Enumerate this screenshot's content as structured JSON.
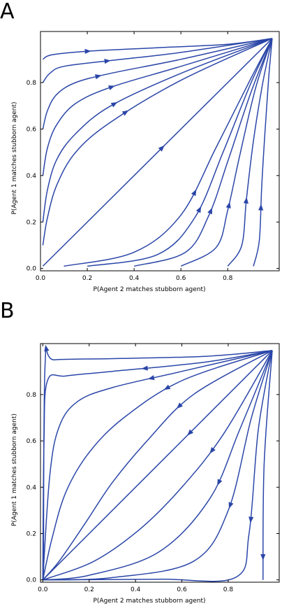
{
  "panels": [
    {
      "letter": "A",
      "xlabel": "P(Agent 2 matches stubborn agent)",
      "ylabel": "P(Agent 1 matches stubborn agent)",
      "color": "#2b46a8"
    },
    {
      "letter": "B",
      "xlabel": "P(Agent 2 matches stubborn agent)",
      "ylabel": "P(Agent 1 matches stubborn agent)",
      "color": "#2b46a8"
    }
  ],
  "chart_data": [
    {
      "type": "line",
      "title": "",
      "xlabel": "P(Agent 2 matches stubborn agent)",
      "ylabel": "P(Agent 1 matches stubborn agent)",
      "xlim": [
        0,
        1.02
      ],
      "ylim": [
        -0.01,
        1.02
      ],
      "xticks": [
        "0.0",
        "0.2",
        "0.4",
        "0.6",
        "0.8"
      ],
      "xtick_values": [
        0,
        0.2,
        0.4,
        0.6,
        0.8
      ],
      "yticks": [
        "0.0",
        "0.2",
        "0.4",
        "0.6",
        "0.8"
      ],
      "ytick_values": [
        0,
        0.2,
        0.4,
        0.6,
        0.8
      ],
      "grid": false,
      "series": [
        {
          "points": [
            [
              0.01,
              0.9
            ],
            [
              0.05,
              0.92
            ],
            [
              0.2,
              0.935
            ],
            [
              0.5,
              0.95
            ],
            [
              0.8,
              0.965
            ],
            [
              0.99,
              0.99
            ]
          ],
          "arrow_at": 0.2
        },
        {
          "points": [
            [
              0.01,
              0.8
            ],
            [
              0.04,
              0.84
            ],
            [
              0.1,
              0.87
            ],
            [
              0.3,
              0.895
            ],
            [
              0.6,
              0.93
            ],
            [
              0.99,
              0.99
            ]
          ],
          "arrow_at": 0.3
        },
        {
          "points": [
            [
              0.01,
              0.6
            ],
            [
              0.03,
              0.68
            ],
            [
              0.07,
              0.75
            ],
            [
              0.15,
              0.8
            ],
            [
              0.3,
              0.84
            ],
            [
              0.6,
              0.9
            ],
            [
              0.99,
              0.99
            ]
          ],
          "arrow_at": 0.32
        },
        {
          "points": [
            [
              0.01,
              0.4
            ],
            [
              0.03,
              0.52
            ],
            [
              0.07,
              0.62
            ],
            [
              0.15,
              0.71
            ],
            [
              0.3,
              0.78
            ],
            [
              0.6,
              0.87
            ],
            [
              0.99,
              0.99
            ]
          ],
          "arrow_at": 0.42
        },
        {
          "points": [
            [
              0.01,
              0.2
            ],
            [
              0.03,
              0.34
            ],
            [
              0.07,
              0.47
            ],
            [
              0.15,
              0.58
            ],
            [
              0.3,
              0.7
            ],
            [
              0.6,
              0.84
            ],
            [
              0.99,
              0.99
            ]
          ],
          "arrow_at": 0.46
        },
        {
          "points": [
            [
              0.01,
              0.1
            ],
            [
              0.03,
              0.22
            ],
            [
              0.07,
              0.36
            ],
            [
              0.15,
              0.5
            ],
            [
              0.3,
              0.63
            ],
            [
              0.6,
              0.81
            ],
            [
              0.99,
              0.99
            ]
          ],
          "arrow_at": 0.5
        },
        {
          "points": [
            [
              0.01,
              0.01
            ],
            [
              0.99,
              0.99
            ]
          ],
          "arrow_at": 0.52
        },
        {
          "points": [
            [
              0.1,
              0.01
            ],
            [
              0.4,
              0.07
            ],
            [
              0.6,
              0.23
            ],
            [
              0.75,
              0.52
            ],
            [
              0.9,
              0.82
            ],
            [
              0.99,
              0.99
            ]
          ],
          "arrow_at": 0.48
        },
        {
          "points": [
            [
              0.2,
              0.01
            ],
            [
              0.5,
              0.06
            ],
            [
              0.66,
              0.22
            ],
            [
              0.78,
              0.5
            ],
            [
              0.9,
              0.8
            ],
            [
              0.99,
              0.99
            ]
          ],
          "arrow_at": 0.42
        },
        {
          "points": [
            [
              0.4,
              0.01
            ],
            [
              0.62,
              0.07
            ],
            [
              0.72,
              0.23
            ],
            [
              0.8,
              0.46
            ],
            [
              0.9,
              0.76
            ],
            [
              0.99,
              0.99
            ]
          ],
          "arrow_at": 0.36
        },
        {
          "points": [
            [
              0.6,
              0.01
            ],
            [
              0.75,
              0.09
            ],
            [
              0.8,
              0.25
            ],
            [
              0.85,
              0.48
            ],
            [
              0.92,
              0.78
            ],
            [
              0.99,
              0.99
            ]
          ],
          "arrow_at": 0.33
        },
        {
          "points": [
            [
              0.8,
              0.01
            ],
            [
              0.86,
              0.1
            ],
            [
              0.88,
              0.3
            ],
            [
              0.91,
              0.55
            ],
            [
              0.95,
              0.8
            ],
            [
              0.99,
              0.99
            ]
          ],
          "arrow_at": 0.3
        },
        {
          "points": [
            [
              0.91,
              0.01
            ],
            [
              0.935,
              0.12
            ],
            [
              0.945,
              0.35
            ],
            [
              0.96,
              0.6
            ],
            [
              0.975,
              0.82
            ],
            [
              0.99,
              0.99
            ]
          ],
          "arrow_at": 0.26
        }
      ]
    },
    {
      "type": "line",
      "title": "",
      "xlabel": "P(Agent 2 matches stubborn agent)",
      "ylabel": "P(Agent 1 matches stubborn agent)",
      "xlim": [
        -0.01,
        1.02
      ],
      "ylim": [
        -0.01,
        1.02
      ],
      "xticks": [
        "0.0",
        "0.2",
        "0.4",
        "0.6",
        "0.8"
      ],
      "xtick_values": [
        0,
        0.2,
        0.4,
        0.6,
        0.8
      ],
      "yticks": [
        "0.0",
        "0.2",
        "0.4",
        "0.6",
        "0.8"
      ],
      "ytick_values": [
        0,
        0.2,
        0.4,
        0.6,
        0.8
      ],
      "grid": false,
      "series": [
        {
          "points": [
            [
              0.99,
              0.99
            ],
            [
              0.7,
              0.965
            ],
            [
              0.3,
              0.955
            ],
            [
              0.05,
              0.95
            ],
            [
              0.01,
              0.93
            ],
            [
              0.003,
              0.0
            ]
          ],
          "arrow_at": 0.5
        },
        {
          "points": [
            [
              0.99,
              0.99
            ],
            [
              0.7,
              0.94
            ],
            [
              0.3,
              0.9
            ],
            [
              0.1,
              0.88
            ],
            [
              0.02,
              0.86
            ],
            [
              0.005,
              0.6
            ],
            [
              0.0,
              0.0
            ]
          ],
          "arrow_at": 0.3
        },
        {
          "points": [
            [
              0.99,
              0.99
            ],
            [
              0.6,
              0.9
            ],
            [
              0.3,
              0.83
            ],
            [
              0.15,
              0.77
            ],
            [
              0.07,
              0.66
            ],
            [
              0.03,
              0.45
            ],
            [
              0.0,
              0.0
            ]
          ],
          "arrow_at": 0.32
        },
        {
          "points": [
            [
              0.99,
              0.99
            ],
            [
              0.6,
              0.86
            ],
            [
              0.35,
              0.7
            ],
            [
              0.2,
              0.55
            ],
            [
              0.1,
              0.38
            ],
            [
              0.04,
              0.18
            ],
            [
              0.0,
              0.0
            ]
          ],
          "arrow_at": 0.32
        },
        {
          "points": [
            [
              0.99,
              0.99
            ],
            [
              0.65,
              0.8
            ],
            [
              0.45,
              0.6
            ],
            [
              0.3,
              0.42
            ],
            [
              0.18,
              0.24
            ],
            [
              0.07,
              0.08
            ],
            [
              0.0,
              0.0
            ]
          ],
          "arrow_at": 0.33
        },
        {
          "points": [
            [
              0.99,
              0.99
            ],
            [
              0.0,
              0.0
            ]
          ],
          "arrow_at": 0.36
        },
        {
          "points": [
            [
              0.99,
              0.99
            ],
            [
              0.78,
              0.63
            ],
            [
              0.6,
              0.4
            ],
            [
              0.42,
              0.22
            ],
            [
              0.22,
              0.08
            ],
            [
              0.0,
              0.0
            ]
          ],
          "arrow_at": 0.35
        },
        {
          "points": [
            [
              0.99,
              0.99
            ],
            [
              0.85,
              0.65
            ],
            [
              0.72,
              0.35
            ],
            [
              0.5,
              0.12
            ],
            [
              0.2,
              0.02
            ],
            [
              0.0,
              0.0
            ]
          ],
          "arrow_at": 0.4
        },
        {
          "points": [
            [
              0.99,
              0.99
            ],
            [
              0.9,
              0.7
            ],
            [
              0.8,
              0.3
            ],
            [
              0.65,
              0.08
            ],
            [
              0.3,
              0.01
            ],
            [
              0.0,
              0.0
            ]
          ],
          "arrow_at": 0.42
        },
        {
          "points": [
            [
              0.99,
              0.99
            ],
            [
              0.93,
              0.65
            ],
            [
              0.89,
              0.2
            ],
            [
              0.83,
              0.01
            ],
            [
              0.5,
              0.003
            ],
            [
              0.0,
              0.0
            ]
          ],
          "arrow_at": 0.4
        },
        {
          "points": [
            [
              0.99,
              0.99
            ],
            [
              0.955,
              0.5
            ],
            [
              0.95,
              0.0
            ]
          ],
          "arrow_at": 0.9
        }
      ]
    }
  ]
}
